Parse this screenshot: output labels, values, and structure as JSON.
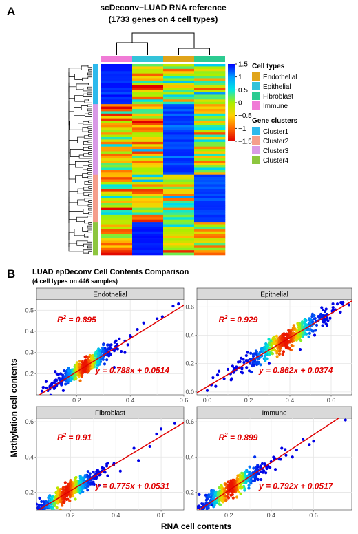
{
  "panel_a": {
    "letter": "A",
    "title_line1": "scDeconv−LUAD RNA reference",
    "title_line2": "(1733 genes on 4 cell types)",
    "colorbar": {
      "ticks": [
        "1.5",
        "1",
        "0.5",
        "0",
        "−0.5",
        "−1",
        "−1.5"
      ],
      "values": [
        1.5,
        1,
        0.5,
        0,
        -0.5,
        -1,
        -1.5
      ]
    },
    "legend_cell_types": {
      "title": "Cell types",
      "items": [
        {
          "label": "Endothelial",
          "color": "#E0A41A"
        },
        {
          "label": "Epithelial",
          "color": "#33C3D9"
        },
        {
          "label": "Fibroblast",
          "color": "#2CCB91"
        },
        {
          "label": "Immune",
          "color": "#F07BD6"
        }
      ]
    },
    "legend_gene_clusters": {
      "title": "Gene clusters",
      "items": [
        {
          "label": "Cluster1",
          "color": "#2DB9EC"
        },
        {
          "label": "Cluster2",
          "color": "#F59E8C"
        },
        {
          "label": "Cluster3",
          "color": "#D99AE6"
        },
        {
          "label": "Cluster4",
          "color": "#8DC63F"
        }
      ]
    }
  },
  "panel_b": {
    "letter": "B",
    "title": "LUAD epDeconv Cell Contents Comparison",
    "subtitle": "(4 cell types on 446 samples)",
    "xlabel": "RNA cell contents",
    "ylabel": "Methylation cell contents"
  },
  "chart_data": [
    {
      "type": "heatmap",
      "title": "scDeconv−LUAD RNA reference",
      "subtitle": "(1733 genes on 4 cell types)",
      "columns": [
        "Immune",
        "Epithelial",
        "Endothelial",
        "Fibroblast"
      ],
      "value_range": [
        -1.5,
        1.5
      ],
      "row_clusters": [
        {
          "name": "Cluster1",
          "rows": 17
        },
        {
          "name": "Cluster3",
          "rows": 30
        },
        {
          "name": "Cluster2",
          "rows": 20
        },
        {
          "name": "Cluster4",
          "rows": 14
        }
      ],
      "blocks": [
        {
          "cluster": "Cluster1",
          "values": [
            1.5,
            -0.3,
            0.1,
            -0.1
          ]
        },
        {
          "cluster": "Cluster3",
          "values": [
            -0.4,
            -0.5,
            1.4,
            -0.3
          ]
        },
        {
          "cluster": "Cluster2",
          "values": [
            -0.2,
            -0.4,
            -0.1,
            1.4
          ]
        },
        {
          "cluster": "Cluster4",
          "values": [
            -0.5,
            1.5,
            -0.1,
            -0.3
          ]
        }
      ]
    },
    {
      "type": "scatter",
      "title": "Endothelial",
      "xlim": [
        0.05,
        0.6
      ],
      "ylim": [
        0.1,
        0.55
      ],
      "xticks": [
        0.2,
        0.4,
        0.6
      ],
      "yticks": [
        0.2,
        0.3,
        0.4,
        0.5
      ],
      "r2_label": "0.895",
      "equation": "y = 0.788x + 0.0514",
      "slope": 0.788,
      "intercept": 0.0514,
      "center": [
        0.23,
        0.232
      ],
      "spread": 0.06,
      "outliers": [
        [
          0.1,
          0.14
        ],
        [
          0.12,
          0.21
        ],
        [
          0.34,
          0.23
        ],
        [
          0.4,
          0.38
        ],
        [
          0.45,
          0.44
        ],
        [
          0.52,
          0.47
        ],
        [
          0.56,
          0.52
        ],
        [
          0.58,
          0.53
        ],
        [
          0.3,
          0.34
        ],
        [
          0.38,
          0.3
        ],
        [
          0.15,
          0.12
        ],
        [
          0.5,
          0.46
        ]
      ]
    },
    {
      "type": "scatter",
      "title": "Epithelial",
      "xlim": [
        -0.05,
        0.7
      ],
      "ylim": [
        -0.02,
        0.65
      ],
      "xticks": [
        0.0,
        0.2,
        0.4,
        0.6
      ],
      "yticks": [
        0.0,
        0.2,
        0.4,
        0.6
      ],
      "r2_label": "0.929",
      "equation": "y = 0.862x + 0.0374",
      "slope": 0.862,
      "intercept": 0.0374,
      "center": [
        0.38,
        0.37
      ],
      "spread": 0.12,
      "outliers": [
        [
          0.0,
          0.01
        ],
        [
          0.02,
          0.05
        ],
        [
          0.05,
          0.12
        ],
        [
          0.45,
          0.3
        ],
        [
          0.52,
          0.4
        ],
        [
          0.56,
          0.5
        ],
        [
          0.62,
          0.58
        ],
        [
          0.65,
          0.63
        ],
        [
          0.63,
          0.62
        ],
        [
          0.58,
          0.47
        ],
        [
          0.1,
          0.16
        ],
        [
          0.3,
          0.2
        ]
      ]
    },
    {
      "type": "scatter",
      "title": "Fibroblast",
      "xlim": [
        0.05,
        0.7
      ],
      "ylim": [
        0.1,
        0.62
      ],
      "xticks": [
        0.2,
        0.4,
        0.6
      ],
      "yticks": [
        0.2,
        0.4,
        0.6
      ],
      "r2_label": "0.91",
      "equation": "y = 0.775x + 0.0531",
      "slope": 0.775,
      "intercept": 0.0531,
      "center": [
        0.18,
        0.19
      ],
      "spread": 0.08,
      "outliers": [
        [
          0.6,
          0.56
        ],
        [
          0.66,
          0.59
        ],
        [
          0.55,
          0.46
        ],
        [
          0.48,
          0.45
        ],
        [
          0.42,
          0.32
        ],
        [
          0.5,
          0.38
        ],
        [
          0.36,
          0.36
        ],
        [
          0.1,
          0.14
        ],
        [
          0.08,
          0.12
        ],
        [
          0.58,
          0.53
        ]
      ]
    },
    {
      "type": "scatter",
      "title": "Immune",
      "xlim": [
        0.05,
        0.78
      ],
      "ylim": [
        0.1,
        0.62
      ],
      "xticks": [
        0.2,
        0.4,
        0.6
      ],
      "yticks": [
        0.2,
        0.4,
        0.6
      ],
      "r2_label": "0.899",
      "equation": "y = 0.792x + 0.0517",
      "slope": 0.792,
      "intercept": 0.0517,
      "center": [
        0.21,
        0.21
      ],
      "spread": 0.09,
      "outliers": [
        [
          0.75,
          0.61
        ],
        [
          0.6,
          0.49
        ],
        [
          0.55,
          0.5
        ],
        [
          0.5,
          0.4
        ],
        [
          0.45,
          0.45
        ],
        [
          0.42,
          0.33
        ],
        [
          0.52,
          0.44
        ],
        [
          0.12,
          0.13
        ],
        [
          0.1,
          0.12
        ],
        [
          0.58,
          0.47
        ]
      ]
    }
  ]
}
